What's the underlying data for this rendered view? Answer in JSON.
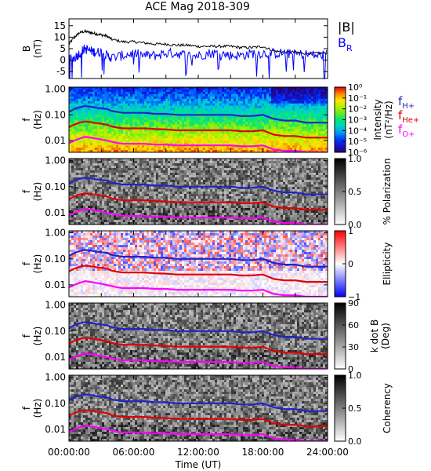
{
  "title": "ACE Mag 2018-309",
  "chart_data": [
    {
      "type": "line",
      "ylabel": "B\n(nT)",
      "ylim": [
        -8,
        18
      ],
      "yticks": [
        -5,
        0,
        5,
        10,
        15
      ],
      "legend": {
        "entries": [
          {
            "label": "|B|",
            "color": "#000000"
          },
          {
            "label": "B",
            "sub": "R",
            "color": "#0000ff"
          }
        ],
        "placement": "right"
      },
      "series": [
        {
          "name": "|B|",
          "color": "#000000",
          "x": [
            0,
            0.5,
            1,
            1.5,
            2,
            2.5,
            3,
            3.5,
            4,
            5,
            6,
            7,
            8,
            9,
            10,
            11,
            12,
            13,
            14,
            15,
            16,
            17,
            18,
            19,
            20,
            21,
            22,
            23,
            24
          ],
          "values": [
            7,
            10,
            12,
            12.5,
            12,
            11.5,
            11,
            10.5,
            9,
            8,
            8,
            7.5,
            7,
            7,
            6.5,
            6.5,
            6,
            6,
            6,
            6,
            5.5,
            5.5,
            6,
            4,
            3.5,
            3.5,
            3,
            3,
            3
          ]
        },
        {
          "name": "B_R",
          "color": "#0000ff",
          "x": [
            0,
            0.5,
            1,
            1.5,
            2,
            2.5,
            3,
            3.5,
            4,
            5,
            6,
            7,
            8,
            9,
            10,
            11,
            12,
            13,
            14,
            15,
            16,
            17,
            18,
            19,
            20,
            21,
            22,
            23,
            24
          ],
          "values": [
            0,
            1,
            3,
            5,
            4,
            3.5,
            3.5,
            2,
            1,
            2,
            3,
            2,
            2,
            3,
            3,
            2,
            2,
            3,
            3,
            2,
            2,
            3,
            3,
            3,
            3,
            2.5,
            2.5,
            2,
            2.5
          ]
        }
      ]
    },
    {
      "type": "heatmap",
      "ylabel": "f\n(Hz)",
      "yscale": "log",
      "yticks": [
        "1.00",
        "0.10",
        "0.01"
      ],
      "colorbar": {
        "label": "Intensity\n(nT²/Hz)",
        "ticks": [
          "10⁰",
          "10⁻¹",
          "10⁻²",
          "10⁻³",
          "10⁻⁴",
          "10⁻⁵",
          "10⁻⁶"
        ],
        "scale": "rainbow"
      },
      "legend": {
        "entries": [
          {
            "label": "f",
            "sub": "H+",
            "color": "#2323c8"
          },
          {
            "label": "f",
            "sub": "He+",
            "color": "#e10000"
          },
          {
            "label": "f",
            "sub": "O+",
            "color": "#ff00ff"
          }
        ],
        "placement": "right"
      }
    },
    {
      "type": "heatmap",
      "ylabel": "f\n(Hz)",
      "yscale": "log",
      "yticks": [
        "1.00",
        "0.10",
        "0.01"
      ],
      "colorbar": {
        "label": "% Polarization",
        "ticks": [
          "1.0",
          "0.5",
          "0.0"
        ],
        "scale": "gray"
      }
    },
    {
      "type": "heatmap",
      "ylabel": "f\n(Hz)",
      "yscale": "log",
      "yticks": [
        "1.00",
        "0.10",
        "0.01"
      ],
      "colorbar": {
        "label": "Ellipticity",
        "ticks": [
          "1",
          "0",
          "−1"
        ],
        "scale": "bwr"
      }
    },
    {
      "type": "heatmap",
      "ylabel": "f\n(Hz)",
      "yscale": "log",
      "yticks": [
        "1.00",
        "0.10",
        "0.01"
      ],
      "colorbar": {
        "label": "k dot B\n(Deg)",
        "ticks": [
          "90",
          "60",
          "30",
          "0"
        ],
        "scale": "gray"
      }
    },
    {
      "type": "heatmap",
      "ylabel": "f\n(Hz)",
      "yscale": "log",
      "yticks": [
        "1.00",
        "0.10",
        "0.01"
      ],
      "colorbar": {
        "label": "Coherency",
        "ticks": [
          "1.0",
          "0.5",
          "0.0"
        ],
        "scale": "gray"
      }
    }
  ],
  "gyro_lines": {
    "x": [
      0,
      0.5,
      1,
      1.5,
      2,
      2.5,
      3,
      3.5,
      4,
      4.5,
      5,
      5.5,
      6,
      7,
      8,
      9,
      10,
      11,
      12,
      13,
      14,
      15,
      16,
      17,
      18,
      19,
      20,
      21,
      22,
      23,
      24
    ],
    "H": [
      0.13,
      0.17,
      0.2,
      0.22,
      0.21,
      0.19,
      0.18,
      0.17,
      0.14,
      0.13,
      0.12,
      0.12,
      0.12,
      0.12,
      0.11,
      0.11,
      0.1,
      0.1,
      0.1,
      0.1,
      0.1,
      0.1,
      0.09,
      0.09,
      0.1,
      0.07,
      0.06,
      0.06,
      0.05,
      0.05,
      0.05
    ],
    "He": [
      0.033,
      0.042,
      0.05,
      0.055,
      0.052,
      0.048,
      0.045,
      0.042,
      0.035,
      0.032,
      0.03,
      0.03,
      0.03,
      0.03,
      0.028,
      0.027,
      0.025,
      0.025,
      0.025,
      0.025,
      0.025,
      0.025,
      0.023,
      0.023,
      0.025,
      0.017,
      0.015,
      0.015,
      0.013,
      0.013,
      0.013
    ],
    "O": [
      0.008,
      0.01,
      0.012,
      0.014,
      0.013,
      0.012,
      0.011,
      0.01,
      0.009,
      0.008,
      0.0075,
      0.0075,
      0.0075,
      0.0075,
      0.007,
      0.007,
      0.0065,
      0.0065,
      0.0065,
      0.0065,
      0.0065,
      0.0065,
      0.006,
      0.006,
      0.0065,
      0.0045,
      0.004,
      0.004,
      0.0035,
      0.0035,
      0.0035
    ]
  },
  "x_axis": {
    "ticks": [
      "00:00:00",
      "06:00:00",
      "12:00:00",
      "18:00:00",
      "24:00:00"
    ],
    "label": "Time (UT)"
  }
}
